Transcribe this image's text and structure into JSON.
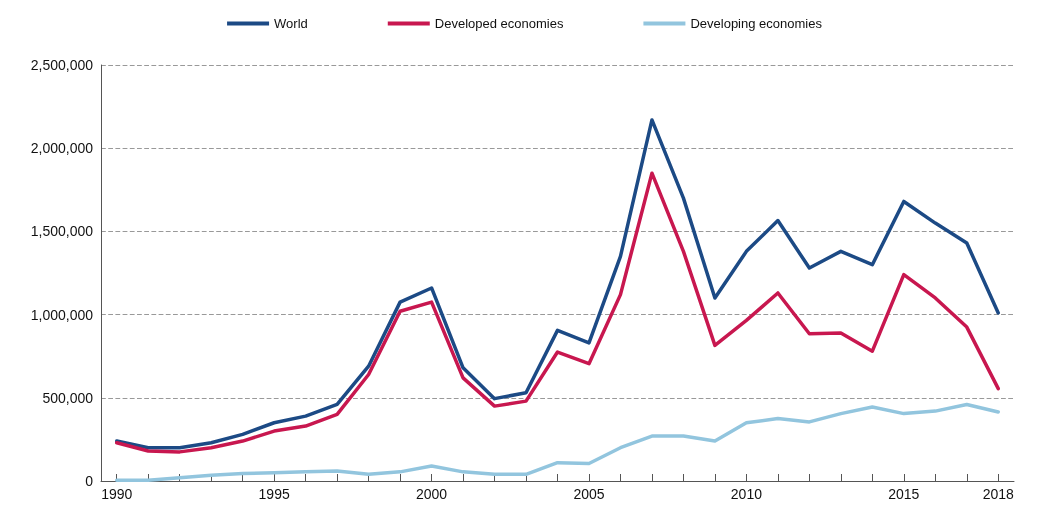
{
  "chart_data": {
    "type": "line",
    "x": [
      1990,
      1991,
      1992,
      1993,
      1994,
      1995,
      1996,
      1997,
      1998,
      1999,
      2000,
      2001,
      2002,
      2003,
      2004,
      2005,
      2006,
      2007,
      2008,
      2009,
      2010,
      2011,
      2012,
      2013,
      2014,
      2015,
      2016,
      2017,
      2018
    ],
    "series": [
      {
        "name": "World",
        "color": "#1c4a85",
        "values": [
          240000,
          200000,
          200000,
          230000,
          280000,
          350000,
          390000,
          460000,
          690000,
          1075000,
          1160000,
          680000,
          495000,
          530000,
          905000,
          830000,
          1350000,
          2170000,
          1700000,
          1100000,
          1380000,
          1565000,
          1280000,
          1380000,
          1300000,
          1680000,
          1550000,
          1430000,
          1010000
        ]
      },
      {
        "name": "Developed economies",
        "color": "#c8174f",
        "values": [
          230000,
          180000,
          175000,
          200000,
          240000,
          300000,
          330000,
          400000,
          640000,
          1020000,
          1075000,
          620000,
          450000,
          480000,
          775000,
          705000,
          1120000,
          1850000,
          1380000,
          815000,
          965000,
          1130000,
          885000,
          890000,
          780000,
          1240000,
          1100000,
          925000,
          555000
        ]
      },
      {
        "name": "Developing economies",
        "color": "#92c5de",
        "values": [
          5000,
          5000,
          20000,
          35000,
          45000,
          50000,
          55000,
          60000,
          40000,
          55000,
          90000,
          55000,
          40000,
          40000,
          110000,
          105000,
          200000,
          270000,
          270000,
          240000,
          350000,
          375000,
          355000,
          405000,
          445000,
          405000,
          420000,
          460000,
          415000
        ]
      }
    ],
    "xlim": [
      1989.5,
      2018.5
    ],
    "xticks": [
      1990,
      {
        "value": 1991,
        "label": null
      },
      {
        "value": 1992,
        "label": null
      },
      {
        "value": 1993,
        "label": null
      },
      {
        "value": 1994,
        "label": null
      },
      1995,
      {
        "value": 1996,
        "label": null
      },
      {
        "value": 1997,
        "label": null
      },
      {
        "value": 1998,
        "label": null
      },
      {
        "value": 1999,
        "label": null
      },
      2000,
      {
        "value": 2001,
        "label": null
      },
      {
        "value": 2002,
        "label": null
      },
      {
        "value": 2003,
        "label": null
      },
      {
        "value": 2004,
        "label": null
      },
      2005,
      {
        "value": 2006,
        "label": null
      },
      {
        "value": 2007,
        "label": null
      },
      {
        "value": 2008,
        "label": null
      },
      {
        "value": 2009,
        "label": null
      },
      2010,
      {
        "value": 2011,
        "label": null
      },
      {
        "value": 2012,
        "label": null
      },
      {
        "value": 2013,
        "label": null
      },
      {
        "value": 2014,
        "label": null
      },
      2015,
      {
        "value": 2016,
        "label": null
      },
      {
        "value": 2017,
        "label": null
      },
      2018
    ],
    "ylim": [
      0,
      2500000
    ],
    "yticks": [
      {
        "value": 0,
        "label": "0"
      },
      {
        "value": 500000,
        "label": "500,000"
      },
      {
        "value": 1000000,
        "label": "1,000,000"
      },
      {
        "value": 1500000,
        "label": "1,500,000"
      },
      {
        "value": 2000000,
        "label": "2,000,000"
      },
      {
        "value": 2500000,
        "label": "2,500,000"
      }
    ],
    "grid": "y",
    "legend": "top",
    "marker": "none",
    "line_style": "solid"
  }
}
